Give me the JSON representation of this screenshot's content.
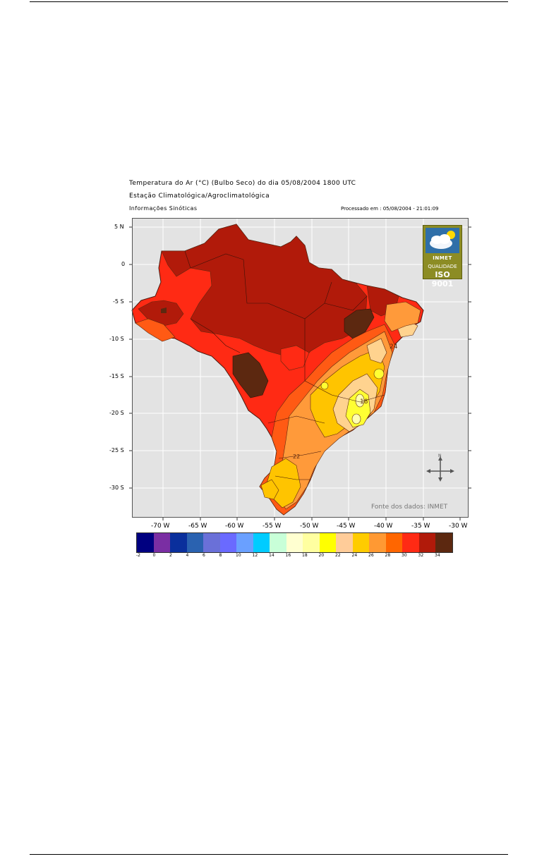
{
  "page": {
    "title_line": "Temperatura do Ar (°C) (Bulbo Seco) do dia 05/08/2004 1800 UTC",
    "subtitle_line": "Estação Climatológica/Agroclimatológica",
    "info_line": "Informações Sinóticas",
    "processed": "Processado em : 05/08/2004 - 21:01:09"
  },
  "map": {
    "y_axis_labels": [
      "5 N",
      "0",
      "-5 S",
      "-10 S",
      "-15 S",
      "-20 S",
      "-25 S",
      "-30 S"
    ],
    "x_axis_labels": [
      "-70 W",
      "-65 W",
      "-60 W",
      "-55 W",
      "-50 W",
      "-45 W",
      "-40 W",
      "-35 W",
      "-30 W"
    ],
    "source": "Fonte dos dados: INMET",
    "contour_labels": [
      "24",
      "18",
      "22"
    ],
    "compass_north": "N",
    "colors": {
      "background": "#e3e3e3",
      "zone_30": "#ff2a14",
      "zone_32": "#b11a0a",
      "zone_34": "#5c2810",
      "zone_28": "#ff5a14",
      "zone_26": "#ff9a3a",
      "zone_24": "#ffc400",
      "zone_22": "#ffd38f",
      "zone_20": "#ffff33",
      "zone_18": "#ffffb0"
    }
  },
  "badge": {
    "brand": "INMET",
    "quality": "QUALIDADE",
    "iso": "ISO 9001"
  },
  "legend": {
    "colors": [
      "#000080",
      "#7a2ea3",
      "#0a2f9c",
      "#2a62b0",
      "#6a70d8",
      "#6a6aff",
      "#6aa0ff",
      "#00ccff",
      "#c8ffd8",
      "#ffffd0",
      "#ffffa0",
      "#ffff00",
      "#ffcc99",
      "#ffcc00",
      "#ff9933",
      "#ff6600",
      "#ff2a14",
      "#b11a0a",
      "#5c2810"
    ],
    "labels": [
      "-2",
      "0",
      "2",
      "4",
      "6",
      "8",
      "10",
      "12",
      "14",
      "16",
      "18",
      "20",
      "22",
      "24",
      "26",
      "28",
      "30",
      "32",
      "34"
    ]
  }
}
